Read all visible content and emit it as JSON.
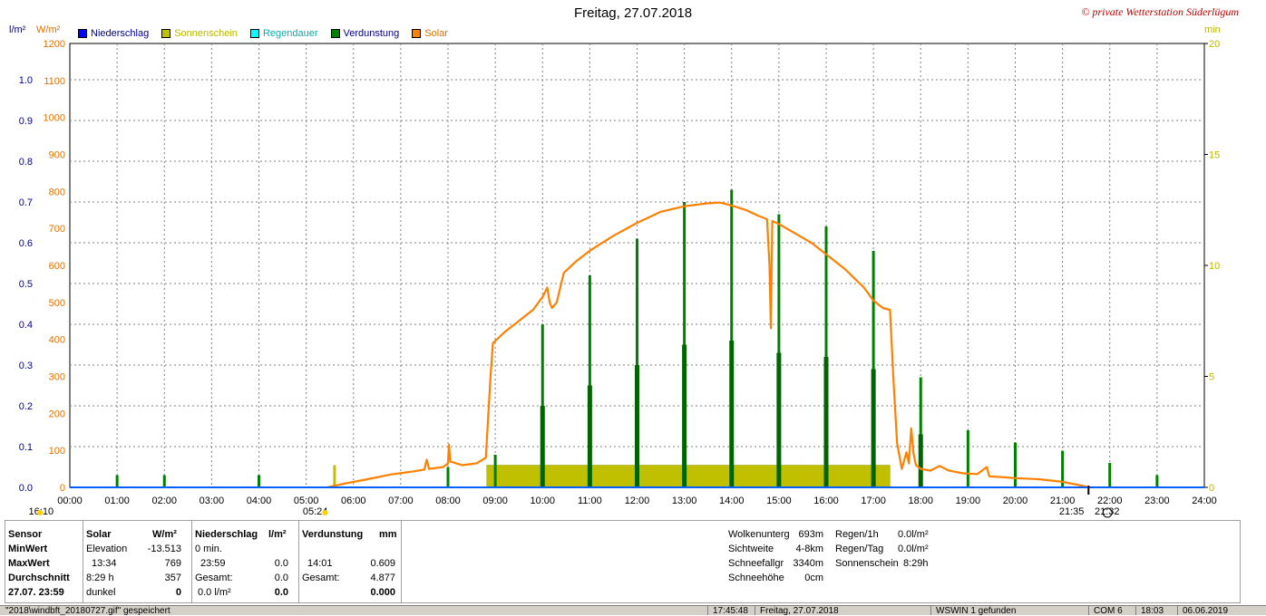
{
  "title": "Freitag, 27.07.2018",
  "copyright": "© private Wetterstation Süderlügum",
  "units": {
    "left1": "l/m²",
    "left2": "W/m²",
    "right": "min"
  },
  "legend": [
    {
      "label": "Niederschlag",
      "color": "#0000ff",
      "text_color": "#00008b"
    },
    {
      "label": "Sonnenschein",
      "color": "#c0c000",
      "text_color": "#b8b800"
    },
    {
      "label": "Regendauer",
      "color": "#00ffff",
      "text_color": "#00b0b0"
    },
    {
      "label": "Verdunstung",
      "color": "#008000",
      "text_color": "#000080"
    },
    {
      "label": "Solar",
      "color": "#ff8000",
      "text_color": "#e07000"
    }
  ],
  "chart_data": {
    "type": "line",
    "x_ticks": [
      "00:00",
      "01:00",
      "02:00",
      "03:00",
      "04:00",
      "05:00",
      "06:00",
      "07:00",
      "08:00",
      "09:00",
      "10:00",
      "11:00",
      "12:00",
      "13:00",
      "14:00",
      "15:00",
      "16:00",
      "17:00",
      "18:00",
      "19:00",
      "20:00",
      "21:00",
      "22:00",
      "23:00",
      "24:00"
    ],
    "y_left_precip_ticks": [
      "0.0",
      "0.1",
      "0.2",
      "0.3",
      "0.4",
      "0.5",
      "0.6",
      "0.7",
      "0.8",
      "0.9",
      "1.0"
    ],
    "y_left_solar_ticks": [
      "0",
      "100",
      "200",
      "300",
      "400",
      "500",
      "600",
      "700",
      "800",
      "900",
      "1000",
      "1100",
      "1200"
    ],
    "y_right_ticks": [
      "0",
      "5",
      "10",
      "15",
      "20"
    ],
    "ylim_precip": [
      0,
      1.0
    ],
    "ylim_solar": [
      0,
      1200
    ],
    "ylim_minutes": [
      0,
      20
    ],
    "grid": true,
    "solar": {
      "name": "Solar",
      "color": "#ff8000",
      "points": [
        [
          5.45,
          0
        ],
        [
          5.8,
          10
        ],
        [
          6.3,
          22
        ],
        [
          6.8,
          35
        ],
        [
          7.2,
          42
        ],
        [
          7.5,
          48
        ],
        [
          7.55,
          75
        ],
        [
          7.6,
          50
        ],
        [
          7.9,
          55
        ],
        [
          8.0,
          65
        ],
        [
          8.02,
          115
        ],
        [
          8.05,
          70
        ],
        [
          8.3,
          60
        ],
        [
          8.6,
          65
        ],
        [
          8.8,
          80
        ],
        [
          8.9,
          300
        ],
        [
          8.95,
          390
        ],
        [
          9.2,
          420
        ],
        [
          9.5,
          450
        ],
        [
          9.8,
          480
        ],
        [
          10.0,
          515
        ],
        [
          10.1,
          540
        ],
        [
          10.15,
          500
        ],
        [
          10.2,
          485
        ],
        [
          10.3,
          500
        ],
        [
          10.45,
          580
        ],
        [
          10.7,
          610
        ],
        [
          11.0,
          640
        ],
        [
          11.5,
          680
        ],
        [
          12.0,
          715
        ],
        [
          12.5,
          745
        ],
        [
          13.0,
          760
        ],
        [
          13.5,
          768
        ],
        [
          13.75,
          770
        ],
        [
          14.0,
          762
        ],
        [
          14.3,
          750
        ],
        [
          14.55,
          735
        ],
        [
          14.75,
          725
        ],
        [
          14.8,
          600
        ],
        [
          14.83,
          430
        ],
        [
          14.86,
          720
        ],
        [
          15.0,
          712
        ],
        [
          15.3,
          690
        ],
        [
          15.7,
          660
        ],
        [
          16.0,
          630
        ],
        [
          16.4,
          590
        ],
        [
          16.8,
          540
        ],
        [
          17.0,
          505
        ],
        [
          17.2,
          485
        ],
        [
          17.35,
          480
        ],
        [
          17.42,
          300
        ],
        [
          17.5,
          120
        ],
        [
          17.6,
          50
        ],
        [
          17.7,
          95
        ],
        [
          17.75,
          65
        ],
        [
          17.8,
          160
        ],
        [
          17.85,
          90
        ],
        [
          17.9,
          60
        ],
        [
          18.0,
          50
        ],
        [
          18.2,
          45
        ],
        [
          18.4,
          58
        ],
        [
          18.6,
          45
        ],
        [
          18.9,
          38
        ],
        [
          19.2,
          36
        ],
        [
          19.4,
          55
        ],
        [
          19.45,
          30
        ],
        [
          19.7,
          28
        ],
        [
          20.0,
          25
        ],
        [
          20.5,
          22
        ],
        [
          21.0,
          15
        ],
        [
          21.35,
          6
        ],
        [
          21.55,
          0
        ]
      ]
    },
    "sunshine_minutes": {
      "name": "Sonnenschein",
      "color": "#c0c000",
      "bars": [
        [
          5.6,
          1.0
        ]
      ],
      "block": {
        "from": 8.82,
        "to": 17.35,
        "value": 1.0
      }
    },
    "evaporation_mm": {
      "name": "Verdunstung",
      "color": "#008000",
      "bars": [
        [
          1.0,
          0.03
        ],
        [
          2.0,
          0.03
        ],
        [
          4.0,
          0.03
        ],
        [
          8.0,
          0.05
        ],
        [
          9.0,
          0.08
        ],
        [
          10.0,
          0.4
        ],
        [
          11.0,
          0.52
        ],
        [
          12.0,
          0.61
        ],
        [
          13.0,
          0.7
        ],
        [
          14.0,
          0.73
        ],
        [
          15.0,
          0.67
        ],
        [
          16.0,
          0.64
        ],
        [
          17.0,
          0.58
        ],
        [
          18.0,
          0.27
        ],
        [
          19.0,
          0.14
        ],
        [
          20.0,
          0.11
        ],
        [
          21.0,
          0.09
        ],
        [
          22.0,
          0.06
        ],
        [
          23.0,
          0.03
        ]
      ],
      "inner_bars": [
        [
          10.0,
          0.2
        ],
        [
          11.0,
          0.25
        ],
        [
          12.0,
          0.3
        ],
        [
          13.0,
          0.35
        ],
        [
          14.0,
          0.36
        ],
        [
          15.0,
          0.33
        ],
        [
          16.0,
          0.32
        ],
        [
          17.0,
          0.29
        ],
        [
          18.0,
          0.13
        ]
      ]
    },
    "below_axis_markers": [
      {
        "label": "16:10",
        "hour": -0.8
      },
      {
        "label": "05:24",
        "hour": 5.0
      },
      {
        "label": "21:35",
        "hour": 21.0
      },
      {
        "label": "21:32",
        "hour": 21.75
      }
    ]
  },
  "panel": {
    "headers": {
      "sensor": "Sensor",
      "solar": "Solar",
      "solar_unit": "W/m²",
      "precip": "Niederschlag",
      "precip_unit": "l/m²",
      "evap": "Verdunstung",
      "evap_unit": "mm"
    },
    "row_labels": [
      "MinWert",
      "MaxWert",
      "Durchschnitt",
      "27.07.  23:59"
    ],
    "solar_col": [
      [
        "Elevation",
        "-13.513"
      ],
      [
        "13:34",
        "769"
      ],
      [
        "8:29 h",
        "357"
      ],
      [
        "dunkel",
        "0"
      ]
    ],
    "precip_col": [
      [
        "0 min.",
        ""
      ],
      [
        "23:59",
        "0.0"
      ],
      [
        "Gesamt:",
        "0.0"
      ],
      [
        "0.0 l/m²",
        "0.0"
      ]
    ],
    "evap_col": [
      [
        "",
        ""
      ],
      [
        "14:01",
        "0.609"
      ],
      [
        "Gesamt:",
        "4.877"
      ],
      [
        "",
        "0.000"
      ]
    ],
    "weather": [
      [
        "Wolkenunterg",
        "693m"
      ],
      [
        "Sichtweite",
        "4-8km"
      ],
      [
        "Schneefallgr",
        "3340m"
      ],
      [
        "Schneehöhe",
        "0cm"
      ]
    ],
    "rain": [
      [
        "Regen/1h",
        "0.0l/m²"
      ],
      [
        "Regen/Tag",
        "0.0l/m²"
      ],
      [
        "Sonnenschein",
        "8:29h"
      ]
    ]
  },
  "statusbar": {
    "file": "\"2018\\windbft_20180727.gif\" gespeichert",
    "time": "17:45:48",
    "date": "Freitag, 27.07.2018",
    "found": "WSWIN 1 gefunden",
    "com": "COM 6",
    "clock": "18:03",
    "date2": "06.06.2019"
  }
}
